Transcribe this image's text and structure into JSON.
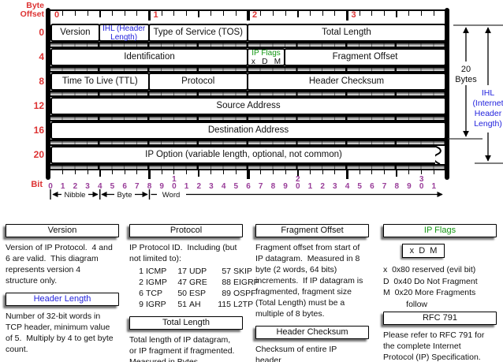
{
  "colors": {
    "red": "#dd3333",
    "purple": "#993d99",
    "blue": "#2222dd",
    "green": "#149614"
  },
  "corner": {
    "byte_offset_line1": "Byte",
    "byte_offset_line2": "Offset",
    "bit_label": "Bit"
  },
  "top_ruler": {
    "byte_numbers": [
      "0",
      "1",
      "2",
      "3"
    ]
  },
  "header_table": {
    "rows": [
      {
        "offset": "0",
        "fields": [
          {
            "label": "Version",
            "bits": 4
          },
          {
            "label": "IHL (Header Length)",
            "bits": 4,
            "color": "blue",
            "small": true
          },
          {
            "label": "Type of Service (TOS)",
            "bits": 8
          },
          {
            "label": "Total Length",
            "bits": 16
          }
        ]
      },
      {
        "offset": "4",
        "fields": [
          {
            "label": "Identification",
            "bits": 16
          },
          {
            "label": "IP Flags",
            "sub": "x   D   M",
            "bits": 3,
            "color": "green",
            "small": true
          },
          {
            "label": "Fragment Offset",
            "bits": 13
          }
        ]
      },
      {
        "offset": "8",
        "fields": [
          {
            "label": "Time To Live (TTL)",
            "bits": 8
          },
          {
            "label": "Protocol",
            "bits": 8
          },
          {
            "label": "Header Checksum",
            "bits": 16
          }
        ]
      },
      {
        "offset": "12",
        "fields": [
          {
            "label": "Source Address",
            "bits": 32
          }
        ]
      },
      {
        "offset": "16",
        "fields": [
          {
            "label": "Destination Address",
            "bits": 32
          }
        ]
      },
      {
        "offset": "20",
        "fields": [
          {
            "label": "IP Option (variable length, optional, not common)",
            "bits": 32,
            "torn": true
          }
        ]
      }
    ]
  },
  "right_annotations": {
    "bytes_line1": "20",
    "bytes_line2": "Bytes",
    "ihl_lines": [
      "IHL",
      "(Internet",
      "Header",
      "Length)"
    ]
  },
  "bit_scale": {
    "labels": [
      "0",
      "1",
      "2",
      "3",
      "4",
      "5",
      "6",
      "7",
      "8",
      "9",
      "10",
      "1",
      "2",
      "3",
      "4",
      "5",
      "6",
      "7",
      "8",
      "9",
      "20",
      "1",
      "2",
      "3",
      "4",
      "5",
      "6",
      "7",
      "8",
      "9",
      "30",
      "1"
    ],
    "group_labels": {
      "nibble": "Nibble",
      "byte": "Byte",
      "word": "Word"
    }
  },
  "legend": {
    "columns": [
      {
        "blocks": [
          {
            "type": "heading",
            "text": "Version"
          },
          {
            "type": "para",
            "text": "Version of IP Protocol.  4 and\n6 are valid.  This diagram\nrepresents version 4\nstructure only."
          },
          {
            "type": "heading",
            "text": "Header Length",
            "color": "blue"
          },
          {
            "type": "para",
            "text": "Number of 32-bit words in\nTCP header, minimum value\nof 5.  Multiply by 4 to get byte\ncount."
          }
        ]
      },
      {
        "blocks": [
          {
            "type": "heading",
            "text": "Protocol"
          },
          {
            "type": "para",
            "text": "IP Protocol ID.  Including (but\nnot limited to):"
          },
          {
            "type": "proto_table",
            "rows": [
              [
                "1",
                "ICMP",
                "17",
                "UDP",
                "57",
                "SKIP"
              ],
              [
                "2",
                "IGMP",
                "47",
                "GRE",
                "88",
                "EIGRP"
              ],
              [
                "6",
                "TCP",
                "50",
                "ESP",
                "89",
                "OSPF"
              ],
              [
                "9",
                "IGRP",
                "51",
                "AH",
                "115",
                "L2TP"
              ]
            ]
          },
          {
            "type": "heading",
            "text": "Total Length"
          },
          {
            "type": "para",
            "text": "Total length of IP datagram,\nor IP fragment if fragmented.\nMeasured in Bytes."
          }
        ]
      },
      {
        "blocks": [
          {
            "type": "heading",
            "text": "Fragment Offset"
          },
          {
            "type": "para",
            "text": "Fragment offset from start of\nIP datagram.  Measured in 8\nbyte (2 words, 64 bits)\nincrements.  If IP datagram is\nfragmented, fragment size\n(Total Length) must be a\nmultiple of 8 bytes."
          },
          {
            "type": "heading",
            "text": "Header Checksum"
          },
          {
            "type": "para",
            "text": "Checksum of entire IP\nheader"
          }
        ]
      },
      {
        "blocks": [
          {
            "type": "heading",
            "text": "IP Flags",
            "color": "green"
          },
          {
            "type": "flagbox",
            "text": "x  D  M"
          },
          {
            "type": "flaglines",
            "lines": [
              "x  0x80 reserved (evil bit)",
              "D  0x40 Do Not Fragment",
              "M  0x20 More Fragments",
              "          follow"
            ]
          },
          {
            "type": "heading",
            "text": "RFC 791"
          },
          {
            "type": "para",
            "text": "Please refer to RFC 791 for\nthe complete Internet\nProtocol (IP) Specification."
          }
        ]
      }
    ]
  }
}
